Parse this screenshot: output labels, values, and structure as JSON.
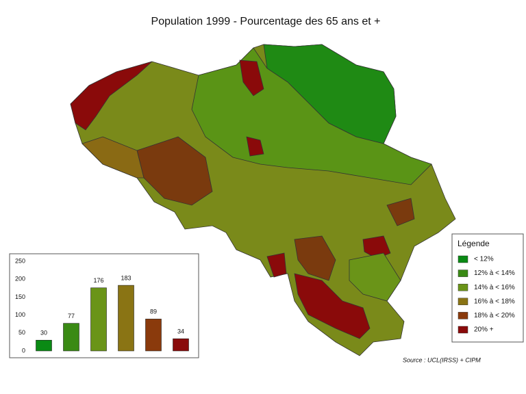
{
  "title": "Population 1999 - Pourcentage des 65 ans et +",
  "legend": {
    "title": "Légende",
    "items": [
      "< 12%",
      "12% à < 14%",
      "14% à < 16%",
      "16% à < 18%",
      "18% à < 20%",
      "20% +"
    ]
  },
  "source": "Source : UCL(IRSS) + CIPM",
  "chart_data": {
    "type": "bar",
    "categories": [
      null,
      null,
      null,
      null,
      null,
      null
    ],
    "values": [
      30,
      77,
      176,
      183,
      89,
      34
    ],
    "colors": [
      "#0a8a14",
      "#3a8a14",
      "#6a9418",
      "#8a7414",
      "#8a3a0c",
      "#8a0a0a"
    ],
    "ylim": [
      0,
      250
    ],
    "yticks": [
      0,
      50,
      100,
      150,
      200,
      250
    ]
  }
}
